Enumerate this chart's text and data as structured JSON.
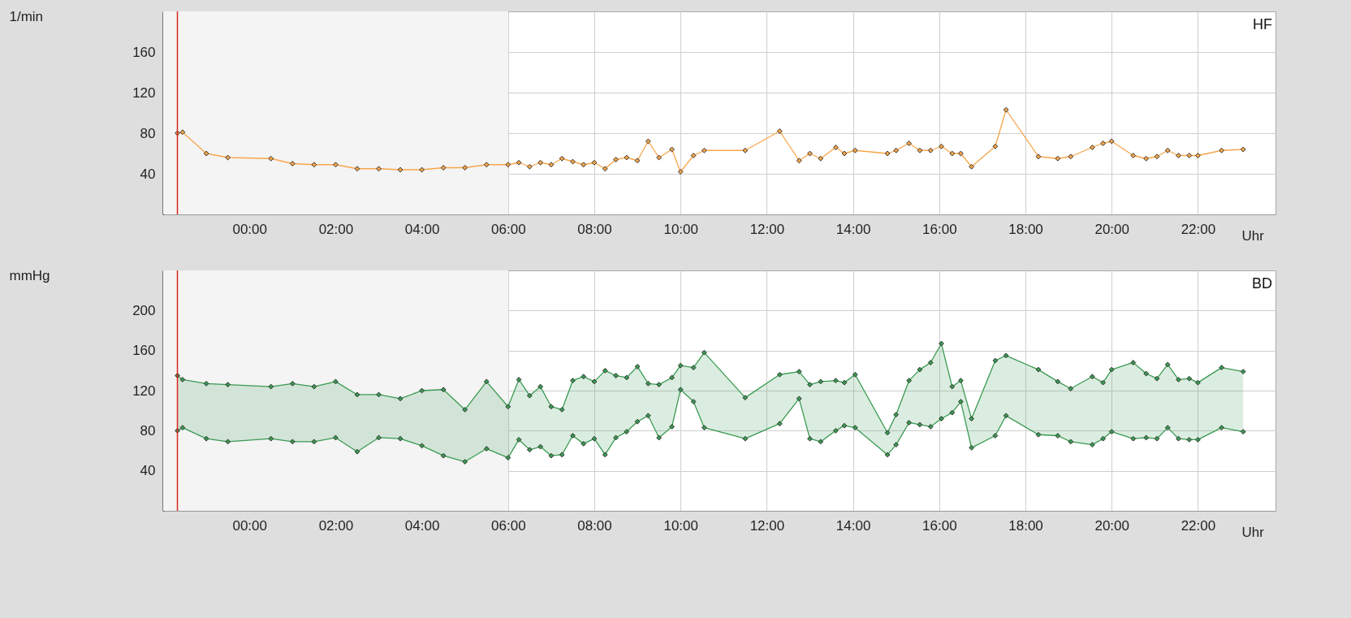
{
  "chart_data": [
    {
      "type": "line",
      "title": "HF",
      "xlabel": "Uhr",
      "ylabel": "1/min",
      "xlim": [
        -2,
        23.8
      ],
      "ylim": [
        0,
        200
      ],
      "yticks": [
        40,
        80,
        120,
        160
      ],
      "xticks": [
        {
          "value": 0,
          "label": "00:00"
        },
        {
          "value": 2,
          "label": "02:00"
        },
        {
          "value": 4,
          "label": "04:00"
        },
        {
          "value": 6,
          "label": "06:00"
        },
        {
          "value": 8,
          "label": "08:00"
        },
        {
          "value": 10,
          "label": "10:00"
        },
        {
          "value": 12,
          "label": "12:00"
        },
        {
          "value": 14,
          "label": "14:00"
        },
        {
          "value": 16,
          "label": "16:00"
        },
        {
          "value": 18,
          "label": "18:00"
        },
        {
          "value": 20,
          "label": "20:00"
        },
        {
          "value": 22,
          "label": "22:00"
        }
      ],
      "grid": true,
      "marker": "diamond",
      "line_style": "solid",
      "x": [
        -1.67,
        -1.55,
        -1,
        -0.5,
        0.5,
        1,
        1.5,
        2,
        2.5,
        3,
        3.5,
        4,
        4.5,
        5,
        5.5,
        6,
        6.25,
        6.5,
        6.75,
        7,
        7.25,
        7.5,
        7.75,
        8,
        8.25,
        8.5,
        8.75,
        9,
        9.25,
        9.5,
        9.8,
        10,
        10.3,
        10.55,
        11.5,
        12.3,
        12.75,
        13,
        13.25,
        13.6,
        13.8,
        14.05,
        14.8,
        15,
        15.3,
        15.55,
        15.8,
        16.05,
        16.3,
        16.5,
        16.75,
        17.3,
        17.55,
        18.3,
        18.75,
        19.05,
        19.55,
        19.8,
        20,
        20.5,
        20.8,
        21.05,
        21.3,
        21.55,
        21.8,
        22,
        22.55,
        23.05
      ],
      "series": [
        {
          "color": "#f7a64b",
          "values": [
            80,
            81,
            60,
            56,
            55,
            50,
            49,
            49,
            45,
            45,
            44,
            44,
            46,
            46,
            49,
            49,
            51,
            47,
            51,
            49,
            55,
            52,
            49,
            51,
            45,
            54,
            56,
            53,
            72,
            56,
            64,
            42,
            58,
            63,
            63,
            82,
            53,
            60,
            55,
            66,
            60,
            63,
            60,
            63,
            70,
            63,
            63,
            67,
            60,
            60,
            47,
            67,
            103,
            57,
            55,
            57,
            66,
            70,
            72,
            58,
            55,
            57,
            63,
            58,
            58,
            58,
            63,
            64
          ]
        }
      ],
      "ref_lines": [
        {
          "axis": "x",
          "value": -1.67,
          "color": "#d9261c"
        }
      ],
      "bands": [
        {
          "axis": "x",
          "from": -2,
          "to": 6,
          "color": "#f4f4f4"
        }
      ]
    },
    {
      "type": "line",
      "title": "BD",
      "xlabel": "Uhr",
      "ylabel": "mmHg",
      "xlim": [
        -2,
        23.8
      ],
      "ylim": [
        0,
        240
      ],
      "yticks": [
        40,
        80,
        120,
        160,
        200
      ],
      "xticks": [
        {
          "value": 0,
          "label": "00:00"
        },
        {
          "value": 2,
          "label": "02:00"
        },
        {
          "value": 4,
          "label": "04:00"
        },
        {
          "value": 6,
          "label": "06:00"
        },
        {
          "value": 8,
          "label": "08:00"
        },
        {
          "value": 10,
          "label": "10:00"
        },
        {
          "value": 12,
          "label": "12:00"
        },
        {
          "value": 14,
          "label": "14:00"
        },
        {
          "value": 16,
          "label": "16:00"
        },
        {
          "value": 18,
          "label": "18:00"
        },
        {
          "value": 20,
          "label": "20:00"
        },
        {
          "value": 22,
          "label": "22:00"
        }
      ],
      "grid": true,
      "marker": "diamond",
      "line_style": "solid",
      "x": [
        -1.67,
        -1.55,
        -1,
        -0.5,
        0.5,
        1,
        1.5,
        2,
        2.5,
        3,
        3.5,
        4,
        4.5,
        5,
        5.5,
        6,
        6.25,
        6.5,
        6.75,
        7,
        7.25,
        7.5,
        7.75,
        8,
        8.25,
        8.5,
        8.75,
        9,
        9.25,
        9.5,
        9.8,
        10,
        10.3,
        10.55,
        11.5,
        12.3,
        12.75,
        13,
        13.25,
        13.6,
        13.8,
        14.05,
        14.8,
        15,
        15.3,
        15.55,
        15.8,
        16.05,
        16.3,
        16.5,
        16.75,
        17.3,
        17.55,
        18.3,
        18.75,
        19.05,
        19.55,
        19.8,
        20,
        20.5,
        20.8,
        21.05,
        21.3,
        21.55,
        21.8,
        22,
        22.55,
        23.05
      ],
      "series": [
        {
          "color": "#3a9a52",
          "lower": [
            80,
            83,
            72,
            69,
            72,
            69,
            69,
            73,
            59,
            73,
            72,
            65,
            55,
            49,
            62,
            53,
            71,
            61,
            64,
            55,
            56,
            75,
            67,
            72,
            56,
            73,
            79,
            89,
            95,
            73,
            84,
            121,
            109,
            83,
            72,
            87,
            112,
            72,
            69,
            80,
            85,
            83,
            56,
            66,
            88,
            86,
            84,
            92,
            98,
            109,
            63,
            75,
            95,
            76,
            75,
            69,
            66,
            72,
            79,
            72,
            73,
            72,
            83,
            72,
            71,
            71,
            83,
            79
          ],
          "upper": [
            135,
            131,
            127,
            126,
            124,
            127,
            124,
            129,
            116,
            116,
            112,
            120,
            121,
            101,
            129,
            104,
            131,
            115,
            124,
            104,
            101,
            130,
            134,
            129,
            140,
            135,
            133,
            144,
            127,
            126,
            133,
            145,
            143,
            158,
            113,
            136,
            139,
            126,
            129,
            130,
            128,
            136,
            78,
            96,
            130,
            141,
            148,
            167,
            124,
            130,
            92,
            150,
            155,
            141,
            129,
            122,
            134,
            128,
            141,
            148,
            137,
            132,
            146,
            131,
            132,
            128,
            143,
            139
          ],
          "values": [
            135,
            131,
            127,
            126,
            124,
            127,
            124,
            129,
            116,
            116,
            112,
            120,
            121,
            101,
            129,
            104,
            131,
            115,
            124,
            104,
            101,
            130,
            134,
            129,
            140,
            135,
            133,
            144,
            127,
            126,
            133,
            145,
            143,
            158,
            113,
            136,
            139,
            126,
            129,
            130,
            128,
            136,
            78,
            96,
            130,
            141,
            148,
            167,
            124,
            130,
            92,
            150,
            155,
            141,
            129,
            122,
            134,
            128,
            141,
            148,
            137,
            132,
            146,
            131,
            132,
            128,
            143,
            139
          ]
        },
        {
          "color": "#3a9a52",
          "values": [
            80,
            83,
            72,
            69,
            72,
            69,
            69,
            73,
            59,
            73,
            72,
            65,
            55,
            49,
            62,
            53,
            71,
            61,
            64,
            55,
            56,
            75,
            67,
            72,
            56,
            73,
            79,
            89,
            95,
            73,
            84,
            121,
            109,
            83,
            72,
            87,
            112,
            72,
            69,
            80,
            85,
            83,
            56,
            66,
            88,
            86,
            84,
            92,
            98,
            109,
            63,
            75,
            95,
            76,
            75,
            69,
            66,
            72,
            79,
            72,
            73,
            72,
            83,
            72,
            71,
            71,
            83,
            79
          ]
        }
      ],
      "ref_lines": [
        {
          "axis": "x",
          "value": -1.67,
          "color": "#d9261c"
        }
      ],
      "bands": [
        {
          "axis": "x",
          "from": -2,
          "to": 6,
          "color": "#f4f4f4"
        }
      ]
    }
  ]
}
